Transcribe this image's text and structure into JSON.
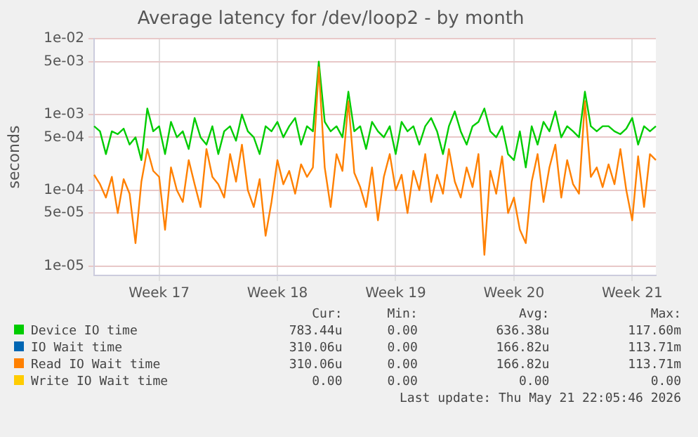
{
  "chart_data": {
    "type": "line",
    "title": "Average latency for /dev/loop2 - by month",
    "ylabel": "seconds",
    "log": "y",
    "grid": true,
    "legend": "bottom",
    "marker": "none",
    "line_style": "solid",
    "ylim": [
      7.5e-06,
      0.01
    ],
    "yticks": [
      {
        "value": 1e-05,
        "label": "1e-05"
      },
      {
        "value": 5e-05,
        "label": "5e-05"
      },
      {
        "value": 0.0001,
        "label": "1e-04"
      },
      {
        "value": 0.0005,
        "label": "5e-04"
      },
      {
        "value": 0.001,
        "label": "1e-03"
      },
      {
        "value": 0.005,
        "label": "5e-03"
      },
      {
        "value": 0.01,
        "label": "1e-02"
      }
    ],
    "categories": [
      null,
      null,
      null,
      null,
      null,
      null,
      null,
      null,
      null,
      null,
      null,
      "Week 17",
      null,
      null,
      null,
      null,
      null,
      null,
      null,
      null,
      null,
      null,
      null,
      null,
      null,
      null,
      null,
      null,
      null,
      null,
      null,
      "Week 18",
      null,
      null,
      null,
      null,
      null,
      null,
      null,
      null,
      null,
      null,
      null,
      null,
      null,
      null,
      null,
      null,
      null,
      null,
      null,
      "Week 19",
      null,
      null,
      null,
      null,
      null,
      null,
      null,
      null,
      null,
      null,
      null,
      null,
      null,
      null,
      null,
      null,
      null,
      null,
      null,
      "Week 20",
      null,
      null,
      null,
      null,
      null,
      null,
      null,
      null,
      null,
      null,
      null,
      null,
      null,
      null,
      null,
      null,
      null,
      null,
      null,
      "Week 21",
      null,
      null,
      null,
      null
    ],
    "series": [
      {
        "name": "Device IO time",
        "color": "#00cc00",
        "values": [
          0.0007,
          0.0006,
          0.0003,
          0.0006,
          0.00055,
          0.00065,
          0.0004,
          0.0005,
          0.00025,
          0.0012,
          0.0006,
          0.0007,
          0.0003,
          0.0008,
          0.0005,
          0.0006,
          0.00035,
          0.0009,
          0.0005,
          0.0004,
          0.0007,
          0.0003,
          0.0006,
          0.0007,
          0.00045,
          0.001,
          0.0006,
          0.0005,
          0.0003,
          0.0007,
          0.0006,
          0.0008,
          0.0005,
          0.0007,
          0.0009,
          0.0004,
          0.0007,
          0.0006,
          0.005,
          0.0008,
          0.0006,
          0.0007,
          0.0005,
          0.002,
          0.0006,
          0.0007,
          0.00035,
          0.0008,
          0.0006,
          0.0005,
          0.0007,
          0.0003,
          0.0008,
          0.0006,
          0.0007,
          0.0004,
          0.0007,
          0.0009,
          0.0006,
          0.0003,
          0.0007,
          0.0011,
          0.0006,
          0.0004,
          0.0007,
          0.0008,
          0.0012,
          0.0006,
          0.0005,
          0.0007,
          0.0003,
          0.00025,
          0.0006,
          0.0002,
          0.0007,
          0.0004,
          0.0008,
          0.0006,
          0.0011,
          0.0005,
          0.0007,
          0.0006,
          0.0005,
          0.002,
          0.0007,
          0.0006,
          0.0007,
          0.0007,
          0.0006,
          0.00055,
          0.00065,
          0.0009,
          0.0004,
          0.0007,
          0.0006,
          0.0007
        ]
      },
      {
        "name": "IO Wait time",
        "color": "#0066b3",
        "values": [
          null,
          null,
          null,
          null,
          null,
          null,
          null,
          null,
          null,
          null,
          null,
          null,
          null,
          null,
          null,
          null,
          null,
          null,
          null,
          null,
          null,
          null,
          null,
          null,
          null,
          null,
          null,
          null,
          null,
          null,
          null,
          null,
          null,
          null,
          null,
          null,
          null,
          null,
          null,
          null,
          null,
          null,
          null,
          null,
          null,
          null,
          null,
          null,
          null,
          null,
          null,
          null,
          null,
          null,
          null,
          null,
          null,
          null,
          null,
          null,
          null,
          null,
          null,
          null,
          null,
          null,
          null,
          null,
          null,
          null,
          null,
          null,
          null,
          null,
          null,
          null,
          null,
          null,
          null,
          null,
          null,
          null,
          null,
          null,
          null,
          null,
          null,
          null,
          null,
          null,
          null,
          null,
          null,
          null,
          null,
          null
        ]
      },
      {
        "name": "Read IO Wait time",
        "color": "#ff8000",
        "values": [
          0.00016,
          0.00012,
          8e-05,
          0.00015,
          5e-05,
          0.00014,
          9e-05,
          2e-05,
          0.00013,
          0.00035,
          0.00018,
          0.00015,
          3e-05,
          0.0002,
          0.0001,
          7e-05,
          0.00025,
          0.00012,
          6e-05,
          0.00035,
          0.00015,
          0.00012,
          8e-05,
          0.0003,
          0.00013,
          0.0004,
          0.0001,
          6e-05,
          0.00014,
          2.5e-05,
          7e-05,
          0.00025,
          0.00012,
          0.00018,
          9e-05,
          0.00022,
          0.00015,
          0.0002,
          0.0042,
          0.0002,
          6e-05,
          0.0003,
          0.00018,
          0.0015,
          0.00017,
          0.00011,
          6e-05,
          0.0002,
          4e-05,
          0.00015,
          0.0003,
          0.0001,
          0.00016,
          5e-05,
          0.00018,
          0.0001,
          0.0003,
          7e-05,
          0.00016,
          9e-05,
          0.00035,
          0.00013,
          8e-05,
          0.0002,
          0.00011,
          0.0003,
          1.4e-05,
          0.00018,
          9e-05,
          0.00028,
          5e-05,
          8e-05,
          3e-05,
          2e-05,
          0.00013,
          0.0003,
          7e-05,
          0.0002,
          0.0004,
          8e-05,
          0.00025,
          0.00012,
          9e-05,
          0.0015,
          0.00015,
          0.0002,
          0.00011,
          0.00022,
          0.00012,
          0.00035,
          0.0001,
          4e-05,
          0.00028,
          6e-05,
          0.0003,
          0.00025
        ]
      },
      {
        "name": "Write IO Wait time",
        "color": "#ffcc00",
        "values": [
          null,
          null,
          null,
          null,
          null,
          null,
          null,
          null,
          null,
          null,
          null,
          null,
          null,
          null,
          null,
          null,
          null,
          null,
          null,
          null,
          null,
          null,
          null,
          null,
          null,
          null,
          null,
          null,
          null,
          null,
          null,
          null,
          null,
          null,
          null,
          null,
          null,
          null,
          null,
          null,
          null,
          null,
          null,
          null,
          null,
          null,
          null,
          null,
          null,
          null,
          null,
          null,
          null,
          null,
          null,
          null,
          null,
          null,
          null,
          null,
          null,
          null,
          null,
          null,
          null,
          null,
          null,
          null,
          null,
          null,
          null,
          null,
          null,
          null,
          null,
          null,
          null,
          null,
          null,
          null,
          null,
          null,
          null,
          null,
          null,
          null,
          null,
          null,
          null,
          null,
          null,
          null,
          null,
          null,
          null,
          null
        ]
      }
    ],
    "annotations": [
      "Cur:",
      "Min:",
      "Avg:",
      "Max:",
      "783.44u",
      "0.00",
      "636.38u",
      "117.60m",
      "310.06u",
      "0.00",
      "166.82u",
      "113.71m",
      "310.06u",
      "0.00",
      "166.82u",
      "113.71m",
      "0.00",
      "0.00",
      "0.00",
      "0.00",
      "Last update: Thu May 21 22:05:46 2026"
    ]
  }
}
